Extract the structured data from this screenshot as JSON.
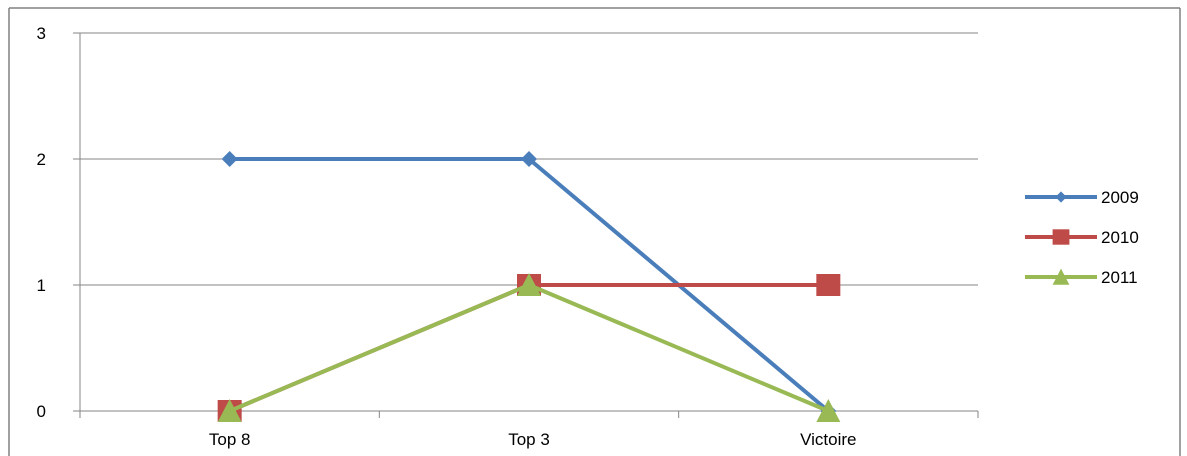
{
  "chart_data": {
    "type": "line",
    "title": "",
    "xlabel": "",
    "ylabel": "",
    "categories": [
      "Top 8",
      "Top 3",
      "Victoire"
    ],
    "ylim": [
      0,
      3
    ],
    "yticks": [
      "0",
      "1",
      "2",
      "3"
    ],
    "grid": true,
    "legend_position": "right",
    "series": [
      {
        "name": "2009",
        "values": [
          2,
          2,
          0
        ],
        "color": "#4a7ebb",
        "marker": "diamond"
      },
      {
        "name": "2010",
        "values": [
          0,
          1,
          1
        ],
        "color": "#be4b48",
        "marker": "square"
      },
      {
        "name": "2011",
        "values": [
          0,
          1,
          0
        ],
        "color": "#98b954",
        "marker": "triangle"
      }
    ]
  }
}
